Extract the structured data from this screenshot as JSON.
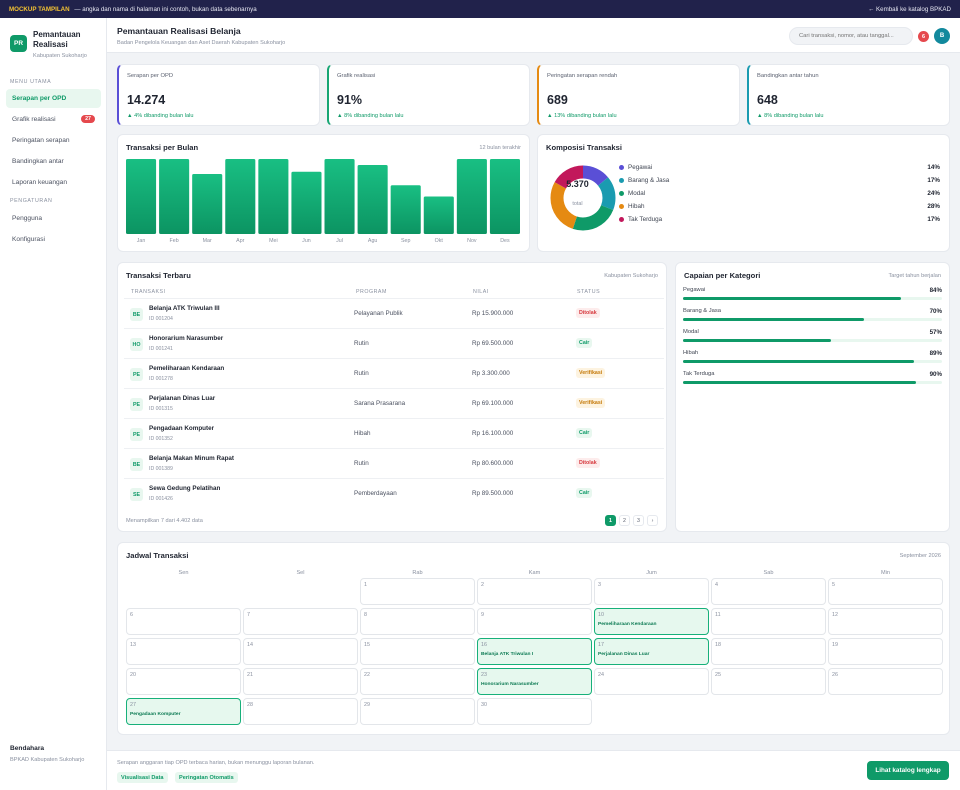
{
  "banner": {
    "tag": "MOCKUP TAMPILAN",
    "text": " — angka dan nama di halaman ini contoh, bukan data sebenarnya",
    "back_label": "← Kembali ke katalog BPKAD"
  },
  "brand": {
    "logo": "PR",
    "title_line1": "Pemantauan",
    "title_line2": "Realisasi",
    "subtitle": "Kabupaten Sukoharjo"
  },
  "sidebar": {
    "section_main": "MENU UTAMA",
    "section_settings": "PENGATURAN",
    "main_items": [
      {
        "label": "Serapan per OPD",
        "active": true
      },
      {
        "label": "Grafik realisasi",
        "badge": "27"
      },
      {
        "label": "Peringatan serapan"
      },
      {
        "label": "Bandingkan antar"
      },
      {
        "label": "Laporan keuangan"
      }
    ],
    "settings_items": [
      {
        "label": "Pengguna"
      },
      {
        "label": "Konfigurasi"
      }
    ],
    "user_name": "Bendahara",
    "user_org": "BPKAD Kabupaten Sukoharjo"
  },
  "header": {
    "title": "Pemantauan Realisasi Belanja",
    "subtitle": "Badan Pengelola Keuangan dan Aset Daerah Kabupaten Sukoharjo",
    "search_placeholder": "Cari transaksi, nomor, atau tanggal...",
    "notif_count": "6",
    "avatar_initial": "B"
  },
  "kpis": [
    {
      "label": "Serapan per OPD",
      "value": "14.274",
      "delta": "▲ 4% dibanding bulan lalu",
      "color": "#5a4fd6"
    },
    {
      "label": "Grafik realisasi",
      "value": "91%",
      "delta": "▲ 8% dibanding bulan lalu",
      "color": "#17a673"
    },
    {
      "label": "Peringatan serapan rendah",
      "value": "689",
      "delta": "▲ 13% dibanding bulan lalu",
      "color": "#e58a12"
    },
    {
      "label": "Bandingkan antar tahun",
      "value": "648",
      "delta": "▲ 8% dibanding bulan lalu",
      "color": "#1a9bb0"
    }
  ],
  "monthly": {
    "title": "Transaksi per Bulan",
    "hint": "12 bulan terakhir"
  },
  "chart_data": {
    "type": "bar",
    "categories": [
      "Jan",
      "Feb",
      "Mar",
      "Apr",
      "Mei",
      "Jun",
      "Jul",
      "Agu",
      "Sep",
      "Okt",
      "Nov",
      "Des"
    ],
    "values": [
      100,
      100,
      80,
      100,
      100,
      83,
      100,
      92,
      65,
      50,
      100,
      100
    ],
    "ylim": [
      0,
      100
    ],
    "color": "#13b27a"
  },
  "composition": {
    "title": "Komposisi Transaksi",
    "total": "5.370",
    "total_label": "total",
    "items": [
      {
        "label": "Pegawai",
        "pct": "14%",
        "value": 14,
        "color": "#5a4fd6"
      },
      {
        "label": "Barang & Jasa",
        "pct": "17%",
        "value": 17,
        "color": "#1a9bb0"
      },
      {
        "label": "Modal",
        "pct": "24%",
        "value": 24,
        "color": "#0f9a68"
      },
      {
        "label": "Hibah",
        "pct": "28%",
        "value": 28,
        "color": "#e58a12"
      },
      {
        "label": "Tak Terduga",
        "pct": "17%",
        "value": 17,
        "color": "#c2185b"
      }
    ]
  },
  "transactions": {
    "title": "Transaksi Terbaru",
    "hint": "Kabupaten Sukoharjo",
    "columns": [
      "TRANSAKSI",
      "PROGRAM",
      "NILAI",
      "STATUS"
    ],
    "rows": [
      {
        "icon": "BE",
        "name": "Belanja ATK Triwulan III",
        "id": "ID 001204",
        "program": "Pelayanan Publik",
        "value": "Rp 15.900.000",
        "status": "Ditolak",
        "kind": "danger"
      },
      {
        "icon": "HO",
        "name": "Honorarium Narasumber",
        "id": "ID 001241",
        "program": "Rutin",
        "value": "Rp 69.500.000",
        "status": "Cair",
        "kind": "ok"
      },
      {
        "icon": "PE",
        "name": "Pemeliharaan Kendaraan",
        "id": "ID 001278",
        "program": "Rutin",
        "value": "Rp 3.300.000",
        "status": "Verifikasi",
        "kind": "warn"
      },
      {
        "icon": "PE",
        "name": "Perjalanan Dinas Luar",
        "id": "ID 001315",
        "program": "Sarana Prasarana",
        "value": "Rp 69.100.000",
        "status": "Verifikasi",
        "kind": "warn"
      },
      {
        "icon": "PE",
        "name": "Pengadaan Komputer",
        "id": "ID 001352",
        "program": "Hibah",
        "value": "Rp 16.100.000",
        "status": "Cair",
        "kind": "ok"
      },
      {
        "icon": "BE",
        "name": "Belanja Makan Minum Rapat",
        "id": "ID 001389",
        "program": "Rutin",
        "value": "Rp 80.600.000",
        "status": "Ditolak",
        "kind": "danger"
      },
      {
        "icon": "SE",
        "name": "Sewa Gedung Pelatihan",
        "id": "ID 001426",
        "program": "Pemberdayaan",
        "value": "Rp 89.500.000",
        "status": "Cair",
        "kind": "ok"
      }
    ],
    "footer": "Menampilkan 7 dari 4.402 data",
    "pages": [
      "1",
      "2",
      "3",
      "›"
    ]
  },
  "achievement": {
    "title": "Capaian per Kategori",
    "hint": "Target tahun berjalan",
    "items": [
      {
        "label": "Pegawai",
        "pct": "84%",
        "value": 84
      },
      {
        "label": "Barang & Jasa",
        "pct": "70%",
        "value": 70
      },
      {
        "label": "Modal",
        "pct": "57%",
        "value": 57
      },
      {
        "label": "Hibah",
        "pct": "89%",
        "value": 89
      },
      {
        "label": "Tak Terduga",
        "pct": "90%",
        "value": 90
      }
    ]
  },
  "calendar": {
    "title": "Jadwal Transaksi",
    "month": "September 2026",
    "weekdays": [
      "Sen",
      "Sel",
      "Rab",
      "Kam",
      "Jum",
      "Sab",
      "Min"
    ],
    "first_weekday_index": 2,
    "days_in_month": 30,
    "events": [
      {
        "day": 10,
        "label": "Pemeliharaan Kendaraan"
      },
      {
        "day": 16,
        "label": "Belanja ATK Triwulan I"
      },
      {
        "day": 17,
        "label": "Perjalanan Dinas Luar"
      },
      {
        "day": 23,
        "label": "Honorarium Narasumber"
      },
      {
        "day": 27,
        "label": "Pengadaan Komputer"
      }
    ]
  },
  "footer": {
    "note": "Serapan anggaran tiap OPD terbaca harian, bukan menunggu laporan bulanan.",
    "chips": [
      "Visualisasi Data",
      "Peringatan Otomatis"
    ],
    "cta": "Lihat katalog lengkap"
  }
}
